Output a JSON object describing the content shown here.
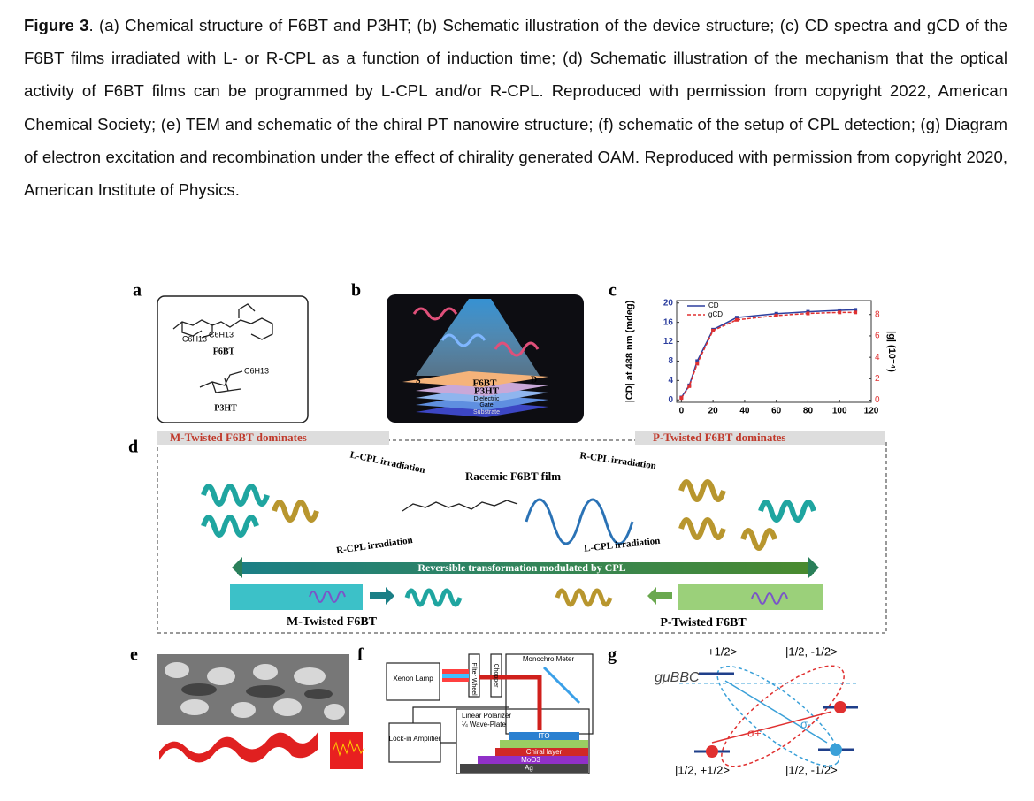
{
  "caption": {
    "label": "Figure 3",
    "text": ".  (a) Chemical structure of F6BT and P3HT; (b) Schematic illustration of the device structure; (c) CD spectra and gCD of the F6BT films irradiated with L- or R-CPL as a function of induction time; (d) Schematic illustration of the mechanism that the optical activity of F6BT films can be programmed by L-CPL and/or R-CPL. Reproduced with permission from copyright 2022, American Chemical Society; (e) TEM and schematic of the chiral PT nanowire structure; (f) schematic of the setup of CPL detection; (g) Diagram of electron excitation and recombination under the effect of chirality generated OAM. Reproduced with permission from copyright 2020, American Institute of Physics."
  },
  "panels": {
    "a": {
      "label": "a",
      "texts": [
        "F6BT",
        "P3HT",
        "C6H13",
        "C6H13",
        "C6H13"
      ]
    },
    "b": {
      "label": "b",
      "texts": [
        "S",
        "D",
        "F6BT",
        "P3HT",
        "Dielectric",
        "Gate",
        "Substrate"
      ]
    },
    "c": {
      "label": "c"
    },
    "d": {
      "label": "d",
      "texts": [
        "M-Twisted F6BT dominates",
        "P-Twisted F6BT dominates",
        "L-CPL irradiation",
        "R-CPL irradiation",
        "Racemic F6BT film",
        "R-CPL irradiation",
        "L-CPL irradiation",
        "Reversible transformation modulated by CPL",
        "M-Twisted F6BT",
        "P-Twisted F6BT"
      ]
    },
    "e": {
      "label": "e"
    },
    "f": {
      "label": "f",
      "texts": [
        "Xenon Lamp",
        "Filter Wheel",
        "Chopper",
        "Monochro Meter",
        "Lock-in Amplifier",
        "Linear Polarizer",
        "¼ Wave-Plate",
        "ITO",
        "Chiral layer",
        "MoO3",
        "Ag"
      ]
    },
    "g": {
      "label": "g",
      "texts": [
        "+1/2>",
        "|1/2, -1/2>",
        "gμBBC",
        "σ+",
        "σ-",
        "|1/2, +1/2>",
        "|1/2, -1/2>"
      ]
    }
  },
  "chart_data": {
    "type": "line",
    "x": [
      0,
      5,
      10,
      20,
      35,
      60,
      80,
      100,
      110
    ],
    "series": [
      {
        "name": "CD",
        "color": "#2d3f9e",
        "values": [
          0.5,
          3,
          8,
          14.5,
          17,
          17.8,
          18.2,
          18.5,
          18.6
        ]
      },
      {
        "name": "gCD",
        "color": "#e03030",
        "axis": "y2",
        "values": [
          0.2,
          1.3,
          3.4,
          6.5,
          7.5,
          7.9,
          8.1,
          8.2,
          8.2
        ]
      }
    ],
    "xlim": [
      -3,
      120
    ],
    "xticks": [
      0,
      20,
      40,
      60,
      80,
      100,
      120
    ],
    "ylim": [
      -0.5,
      20.5
    ],
    "yticks": [
      0,
      4,
      8,
      12,
      16,
      20
    ],
    "y2lim": [
      -0.2,
      9.3
    ],
    "y2ticks": [
      0,
      2,
      4,
      6,
      8
    ],
    "ylabel": "|CD| at 488 nm (mdeg)",
    "y2label": "|g| (10⁻⁴)"
  }
}
